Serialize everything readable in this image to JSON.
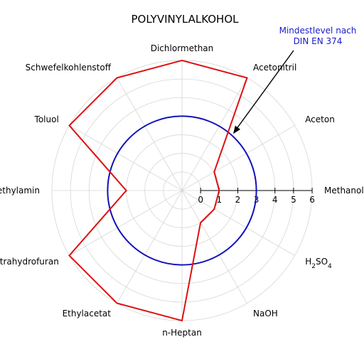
{
  "chart_data": {
    "type": "radar",
    "title": "POLYVINYLALKOHOL",
    "categories": [
      {
        "label": "Methanol",
        "sub": ""
      },
      {
        "label": "Aceton",
        "sub": ""
      },
      {
        "label": "Acetonitril",
        "sub": ""
      },
      {
        "label": "Dichlormethan",
        "sub": ""
      },
      {
        "label": "Schwefelkohlenstoff",
        "sub": ""
      },
      {
        "label": "Toluol",
        "sub": ""
      },
      {
        "label": "Diethylamin",
        "sub": ""
      },
      {
        "label": "Tetrahydrofuran",
        "sub": ""
      },
      {
        "label": "Ethylacetat",
        "sub": ""
      },
      {
        "label": "n-Heptan",
        "sub": ""
      },
      {
        "label": "NaOH",
        "sub": ""
      },
      {
        "label": "H",
        "sub": "2",
        "rest": "SO",
        "sub2": "4"
      }
    ],
    "series": [
      {
        "values": [
          1,
          1,
          6,
          6,
          6,
          6,
          2,
          6,
          6,
          6,
          1,
          1
        ],
        "color": "#dd1111"
      }
    ],
    "reference_level": 3,
    "reference_color": "#1111bb",
    "reference_label_line1": "Mindestlevel nach",
    "reference_label_line2": "DIN EN 374",
    "rlim": [
      -1,
      6
    ],
    "ticks": [
      "0",
      "1",
      "2",
      "3",
      "4",
      "5",
      "6"
    ],
    "grid": true
  }
}
